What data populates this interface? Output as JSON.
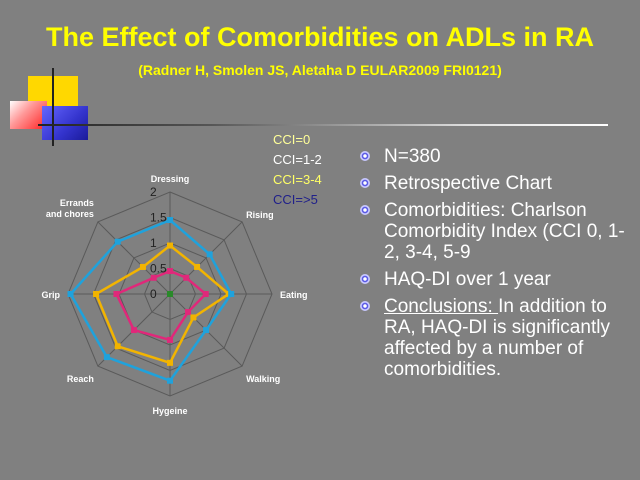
{
  "header": {
    "title": "The Effect of Comorbidities on ADLs in RA",
    "subtitle": "(Radner H, Smolen JS, Aletaha D EULAR2009 FRI0121)"
  },
  "colors": {
    "background": "#808080",
    "title": "#ffff00",
    "deco_yellow": "#ffd800",
    "deco_red": "#ff3030",
    "deco_blue": "#3333cc"
  },
  "bullets": [
    {
      "text": "N=380"
    },
    {
      "text": "Retrospective Chart"
    },
    {
      "text": "Comorbidities: Charlson Comorbidity Index (CCI 0, 1-2, 3-4, 5-9"
    },
    {
      "text": "HAQ-DI over 1 year"
    },
    {
      "text_underlined": "Conclusions: ",
      "text": "In addition to RA, HAQ-DI is significantly affected by a number of comorbidities."
    }
  ],
  "chart_data": {
    "type": "radar",
    "categories": [
      "Dressing",
      "Rising",
      "Eating",
      "Walking",
      "Hygeine",
      "Reach",
      "Grip",
      "Errands and chores"
    ],
    "category_lines": [
      [
        "Dressing"
      ],
      [
        "Rising"
      ],
      [
        "Eating"
      ],
      [
        "Walking"
      ],
      [
        "Hygeine"
      ],
      [
        "Reach"
      ],
      [
        "Grip"
      ],
      [
        "Errands",
        "and chores"
      ]
    ],
    "ticks": [
      "0",
      "0.5",
      "1",
      "1.5",
      "2"
    ],
    "range": [
      0,
      2
    ],
    "series": [
      {
        "name": "CCI=0",
        "color": "#2a8a2a",
        "values": [
          0,
          0,
          0,
          0,
          0,
          0,
          0,
          0
        ]
      },
      {
        "name": "CCI=1-2",
        "color": "#e0287a",
        "values": [
          0.45,
          0.45,
          0.7,
          0.5,
          0.9,
          1.0,
          1.05,
          0.45
        ]
      },
      {
        "name": "CCI=3-4",
        "color": "#f2b400",
        "values": [
          0.95,
          0.75,
          1.15,
          0.65,
          1.35,
          1.45,
          1.45,
          0.75
        ]
      },
      {
        "name": "CCI=>5",
        "color": "#1fa2dc",
        "values": [
          1.45,
          1.1,
          1.2,
          1.0,
          1.7,
          1.75,
          1.95,
          1.45
        ]
      }
    ],
    "legend": [
      {
        "name": "CCI=0",
        "color": "#ffff99"
      },
      {
        "name": "CCI=1-2",
        "color": "#ffffff"
      },
      {
        "name": "CCI=3-4",
        "color": "#ffff66"
      },
      {
        "name": "CCI=>5",
        "color": "#20208a"
      }
    ],
    "legend_position": "top-right"
  }
}
